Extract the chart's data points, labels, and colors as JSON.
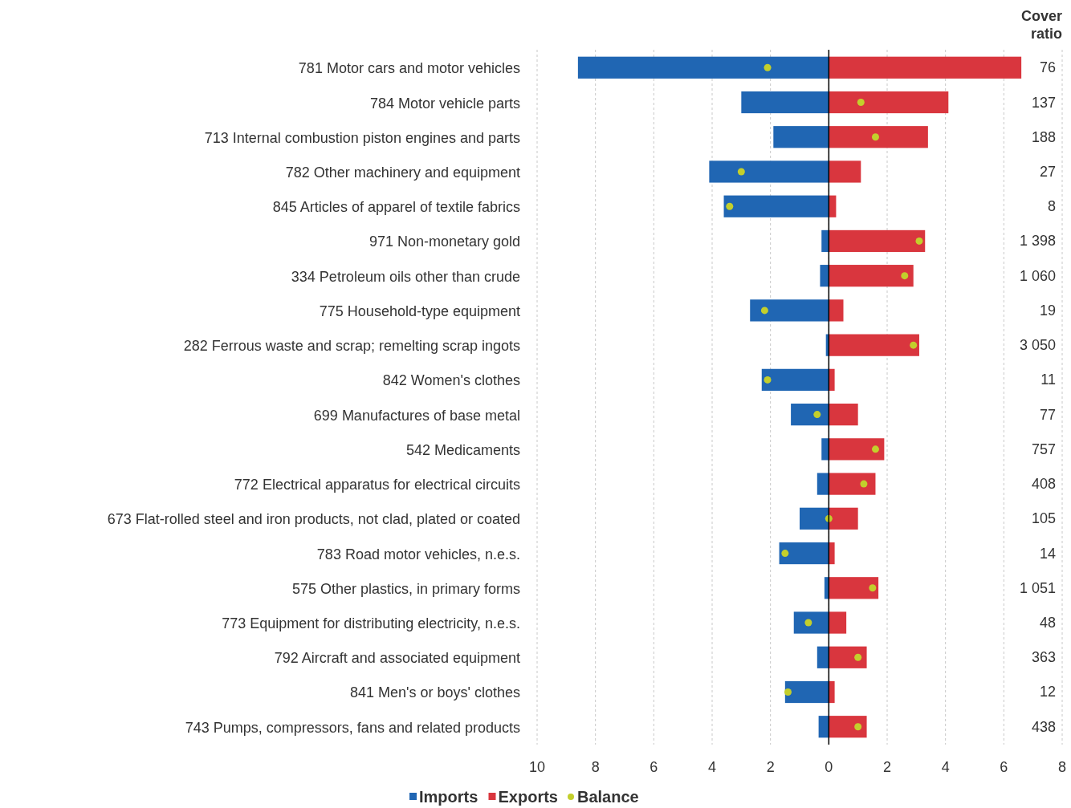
{
  "chart_data": {
    "type": "bar",
    "orientation": "horizontal",
    "stacked": true,
    "categories": [
      "781 Motor cars and motor vehicles",
      "784 Motor vehicle parts",
      "713 Internal combustion piston engines and parts",
      "782 Other machinery and equipment",
      "845 Articles of apparel of textile fabrics",
      "971 Non-monetary gold",
      "334 Petroleum oils other than crude",
      "775 Household-type equipment",
      "282 Ferrous waste and scrap; remelting scrap ingots",
      "842 Women's clothes",
      "699 Manufactures of base metal",
      "542 Medicaments",
      "772 Electrical apparatus for electrical circuits",
      "673 Flat-rolled steel and iron products, not clad, plated or coated",
      "783 Road motor vehicles, n.e.s.",
      "575 Other plastics, in primary forms",
      "773 Equipment for distributing electricity, n.e.s.",
      "792 Aircraft and associated equipment",
      "841 Men's or boys' clothes",
      "743 Pumps, compressors, fans and related products"
    ],
    "series": [
      {
        "name": "Imports",
        "color": "#2066b3",
        "values": [
          -8.6,
          -3.0,
          -1.9,
          -4.1,
          -3.6,
          -0.25,
          -0.3,
          -2.7,
          -0.1,
          -2.3,
          -1.3,
          -0.25,
          -0.4,
          -1.0,
          -1.7,
          -0.15,
          -1.2,
          -0.4,
          -1.5,
          -0.35
        ]
      },
      {
        "name": "Exports",
        "color": "#d9363e",
        "values": [
          6.6,
          4.1,
          3.4,
          1.1,
          0.25,
          3.3,
          2.9,
          0.5,
          3.1,
          0.2,
          1.0,
          1.9,
          1.6,
          1.0,
          0.2,
          1.7,
          0.6,
          1.3,
          0.2,
          1.3
        ]
      },
      {
        "name": "Balance",
        "type": "scatter",
        "color": "#c3cf2c",
        "marker": "circle",
        "values": [
          -2.1,
          1.1,
          1.6,
          -3.0,
          -3.4,
          3.1,
          2.6,
          -2.2,
          2.9,
          -2.1,
          -0.4,
          1.6,
          1.2,
          0.0,
          -1.5,
          1.5,
          -0.7,
          1.0,
          -1.4,
          1.0
        ]
      }
    ],
    "xlim": [
      -10,
      8
    ],
    "xticks": [
      {
        "value": -10,
        "label": "10"
      },
      {
        "value": -8,
        "label": "8"
      },
      {
        "value": -6,
        "label": "6"
      },
      {
        "value": -4,
        "label": "4"
      },
      {
        "value": -2,
        "label": "2"
      },
      0,
      2,
      4,
      6,
      8
    ],
    "grid": "x",
    "legend": "bottom",
    "annotations": [
      "Cover ratio",
      "76",
      "137",
      "188",
      "27",
      "8",
      "1 398",
      "1 060",
      "19",
      "3 050",
      "11",
      "77",
      "757",
      "408",
      "105",
      "14",
      "1 051",
      "48",
      "363",
      "12",
      "438"
    ]
  }
}
